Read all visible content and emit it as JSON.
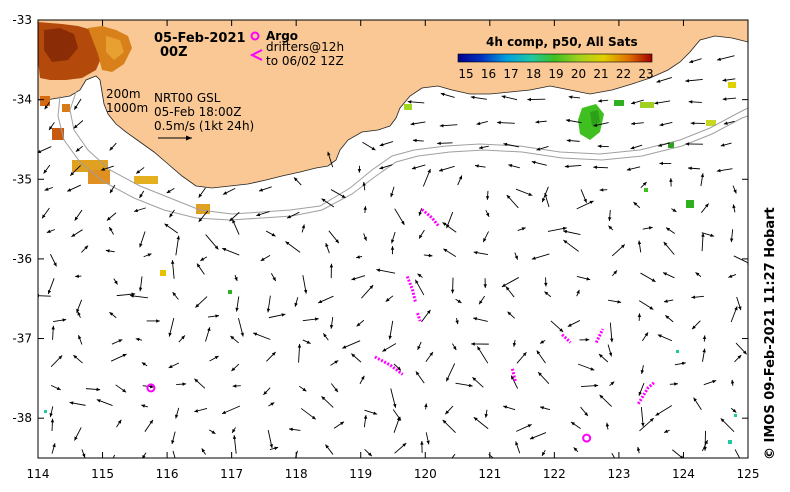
{
  "title": {
    "date": "05-Feb-2021",
    "hour": "00Z"
  },
  "legend": {
    "argo_label": "Argo",
    "drifters_line1": "drifters@12h",
    "drifters_line2": "to 06/02 12Z",
    "colorbar_title": "4h comp, p50, All Sats",
    "colorbar_ticks": [
      "15",
      "16",
      "17",
      "18",
      "19",
      "20",
      "21",
      "22",
      "23"
    ],
    "isobath_200": "200m",
    "isobath_1000": "1000m",
    "product": "NRT00 GSL",
    "product_time": "05-Feb 18:00Z",
    "scale_label": "0.5m/s (1kt 24h)"
  },
  "axes": {
    "x_ticks": [
      "114",
      "115",
      "116",
      "117",
      "118",
      "119",
      "120",
      "121",
      "122",
      "123",
      "124",
      "125"
    ],
    "y_ticks": [
      "-33",
      "-34",
      "-35",
      "-36",
      "-37",
      "-38"
    ]
  },
  "credit": "© IMOS 09-Feb-2021 11:27 Hobart",
  "colors": {
    "land": "#f9c894",
    "argo": "#ff00ff",
    "drifter": "#ff00ff",
    "isobath": "#a0a0a0"
  },
  "map_data": {
    "lon_range": [
      114,
      125
    ],
    "lat_range": [
      -38.5,
      -33
    ],
    "argo_floats": [
      {
        "lon": 115.75,
        "lat": -37.62
      },
      {
        "lon": 122.5,
        "lat": -38.25
      }
    ],
    "drifter_tracks": [
      [
        [
          119.95,
          -35.38
        ],
        [
          120.1,
          -35.48
        ],
        [
          120.2,
          -35.58
        ]
      ],
      [
        [
          119.72,
          -36.22
        ],
        [
          119.8,
          -36.38
        ],
        [
          119.85,
          -36.55
        ]
      ],
      [
        [
          119.88,
          -36.68
        ],
        [
          119.92,
          -36.78
        ]
      ],
      [
        [
          119.22,
          -37.23
        ],
        [
          119.45,
          -37.33
        ],
        [
          119.65,
          -37.45
        ]
      ],
      [
        [
          121.35,
          -37.38
        ],
        [
          121.4,
          -37.55
        ]
      ],
      [
        [
          122.12,
          -36.95
        ],
        [
          122.25,
          -37.05
        ]
      ],
      [
        [
          122.65,
          -37.05
        ],
        [
          122.75,
          -36.88
        ]
      ],
      [
        [
          123.3,
          -37.82
        ],
        [
          123.45,
          -37.62
        ],
        [
          123.55,
          -37.55
        ]
      ]
    ]
  }
}
